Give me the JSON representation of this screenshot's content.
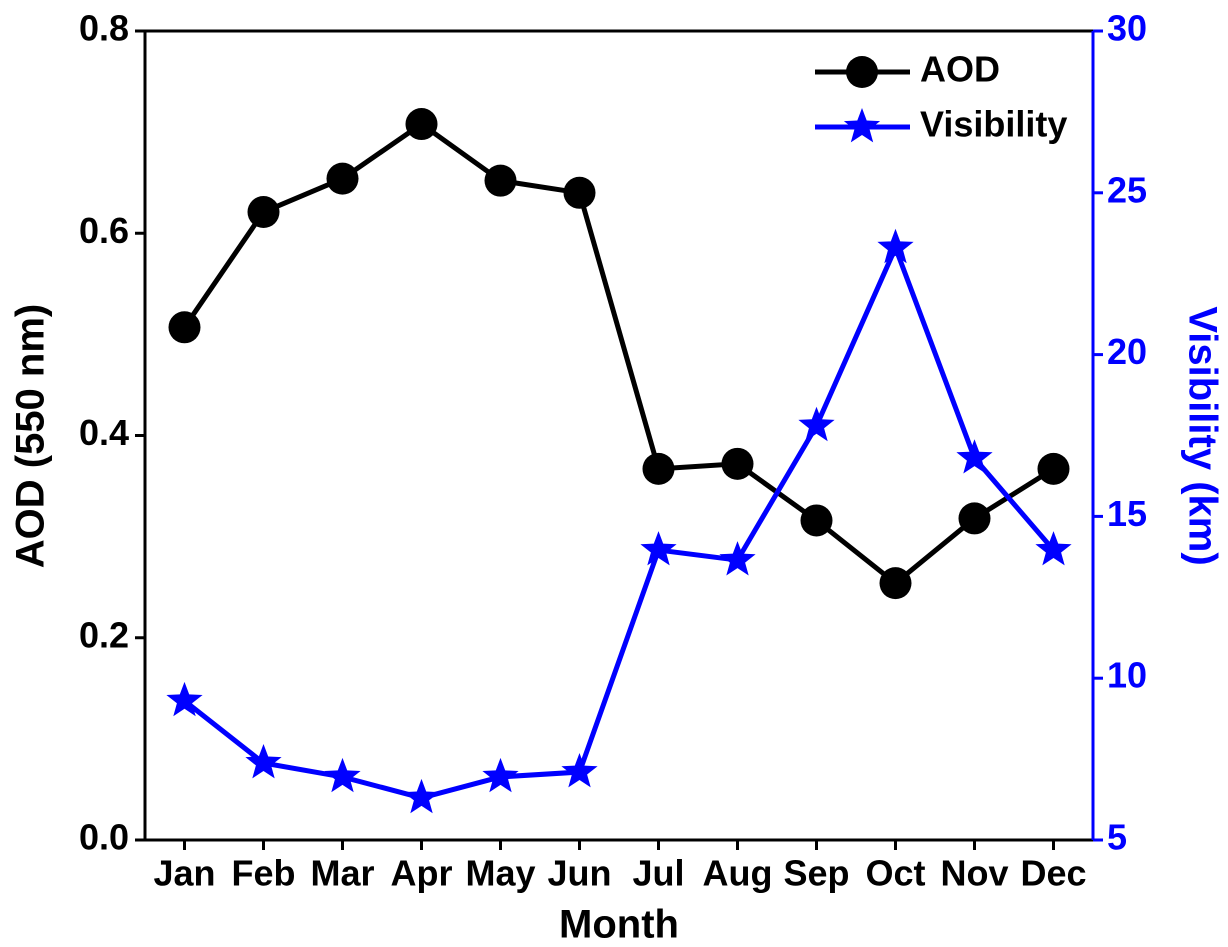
{
  "chart_data": {
    "type": "line",
    "x_label": "Month",
    "y_label": "AOD (550 nm)",
    "y2_label": "Visibility (km)",
    "categories": [
      "Jan",
      "Feb",
      "Mar",
      "Apr",
      "May",
      "Jun",
      "Jul",
      "Aug",
      "Sep",
      "Oct",
      "Nov",
      "Dec"
    ],
    "series": [
      {
        "name": "AOD",
        "color": "#000000",
        "marker": "circle",
        "values": [
          0.507,
          0.621,
          0.654,
          0.708,
          0.652,
          0.64,
          0.367,
          0.372,
          0.316,
          0.254,
          0.318,
          0.367
        ]
      },
      {
        "name": "Visibility",
        "color": "#0000ff",
        "marker": "star",
        "axis": "y2",
        "values": [
          9.3,
          7.38,
          6.95,
          6.3,
          6.95,
          7.1,
          13.96,
          13.65,
          17.8,
          23.3,
          16.8,
          13.96
        ]
      }
    ],
    "ylim": [
      0,
      0.8
    ],
    "yticks": [
      {
        "value": 0,
        "label": "0.0"
      },
      0.2,
      0.4,
      0.6,
      0.8
    ],
    "y2lim": [
      5,
      30
    ],
    "y2ticks": [
      5,
      10,
      15,
      20,
      25,
      30
    ],
    "y2_color": "#0000ff",
    "legend": "top-right"
  }
}
